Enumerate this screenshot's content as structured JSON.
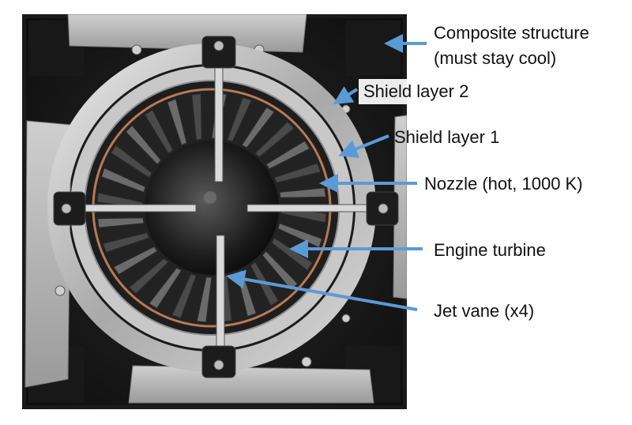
{
  "figure": {
    "subject": "engine nozzle assembly with jet vanes and heat shields",
    "accent_color": "#5b9bd5"
  },
  "callouts": {
    "composite_line1": "Composite structure",
    "composite_line2": "(must stay cool)",
    "shield2": "Shield layer 2",
    "shield1": "Shield layer 1",
    "nozzle": "Nozzle (hot, 1000 K)",
    "turbine": "Engine turbine",
    "vane": "Jet vane (x4)"
  }
}
